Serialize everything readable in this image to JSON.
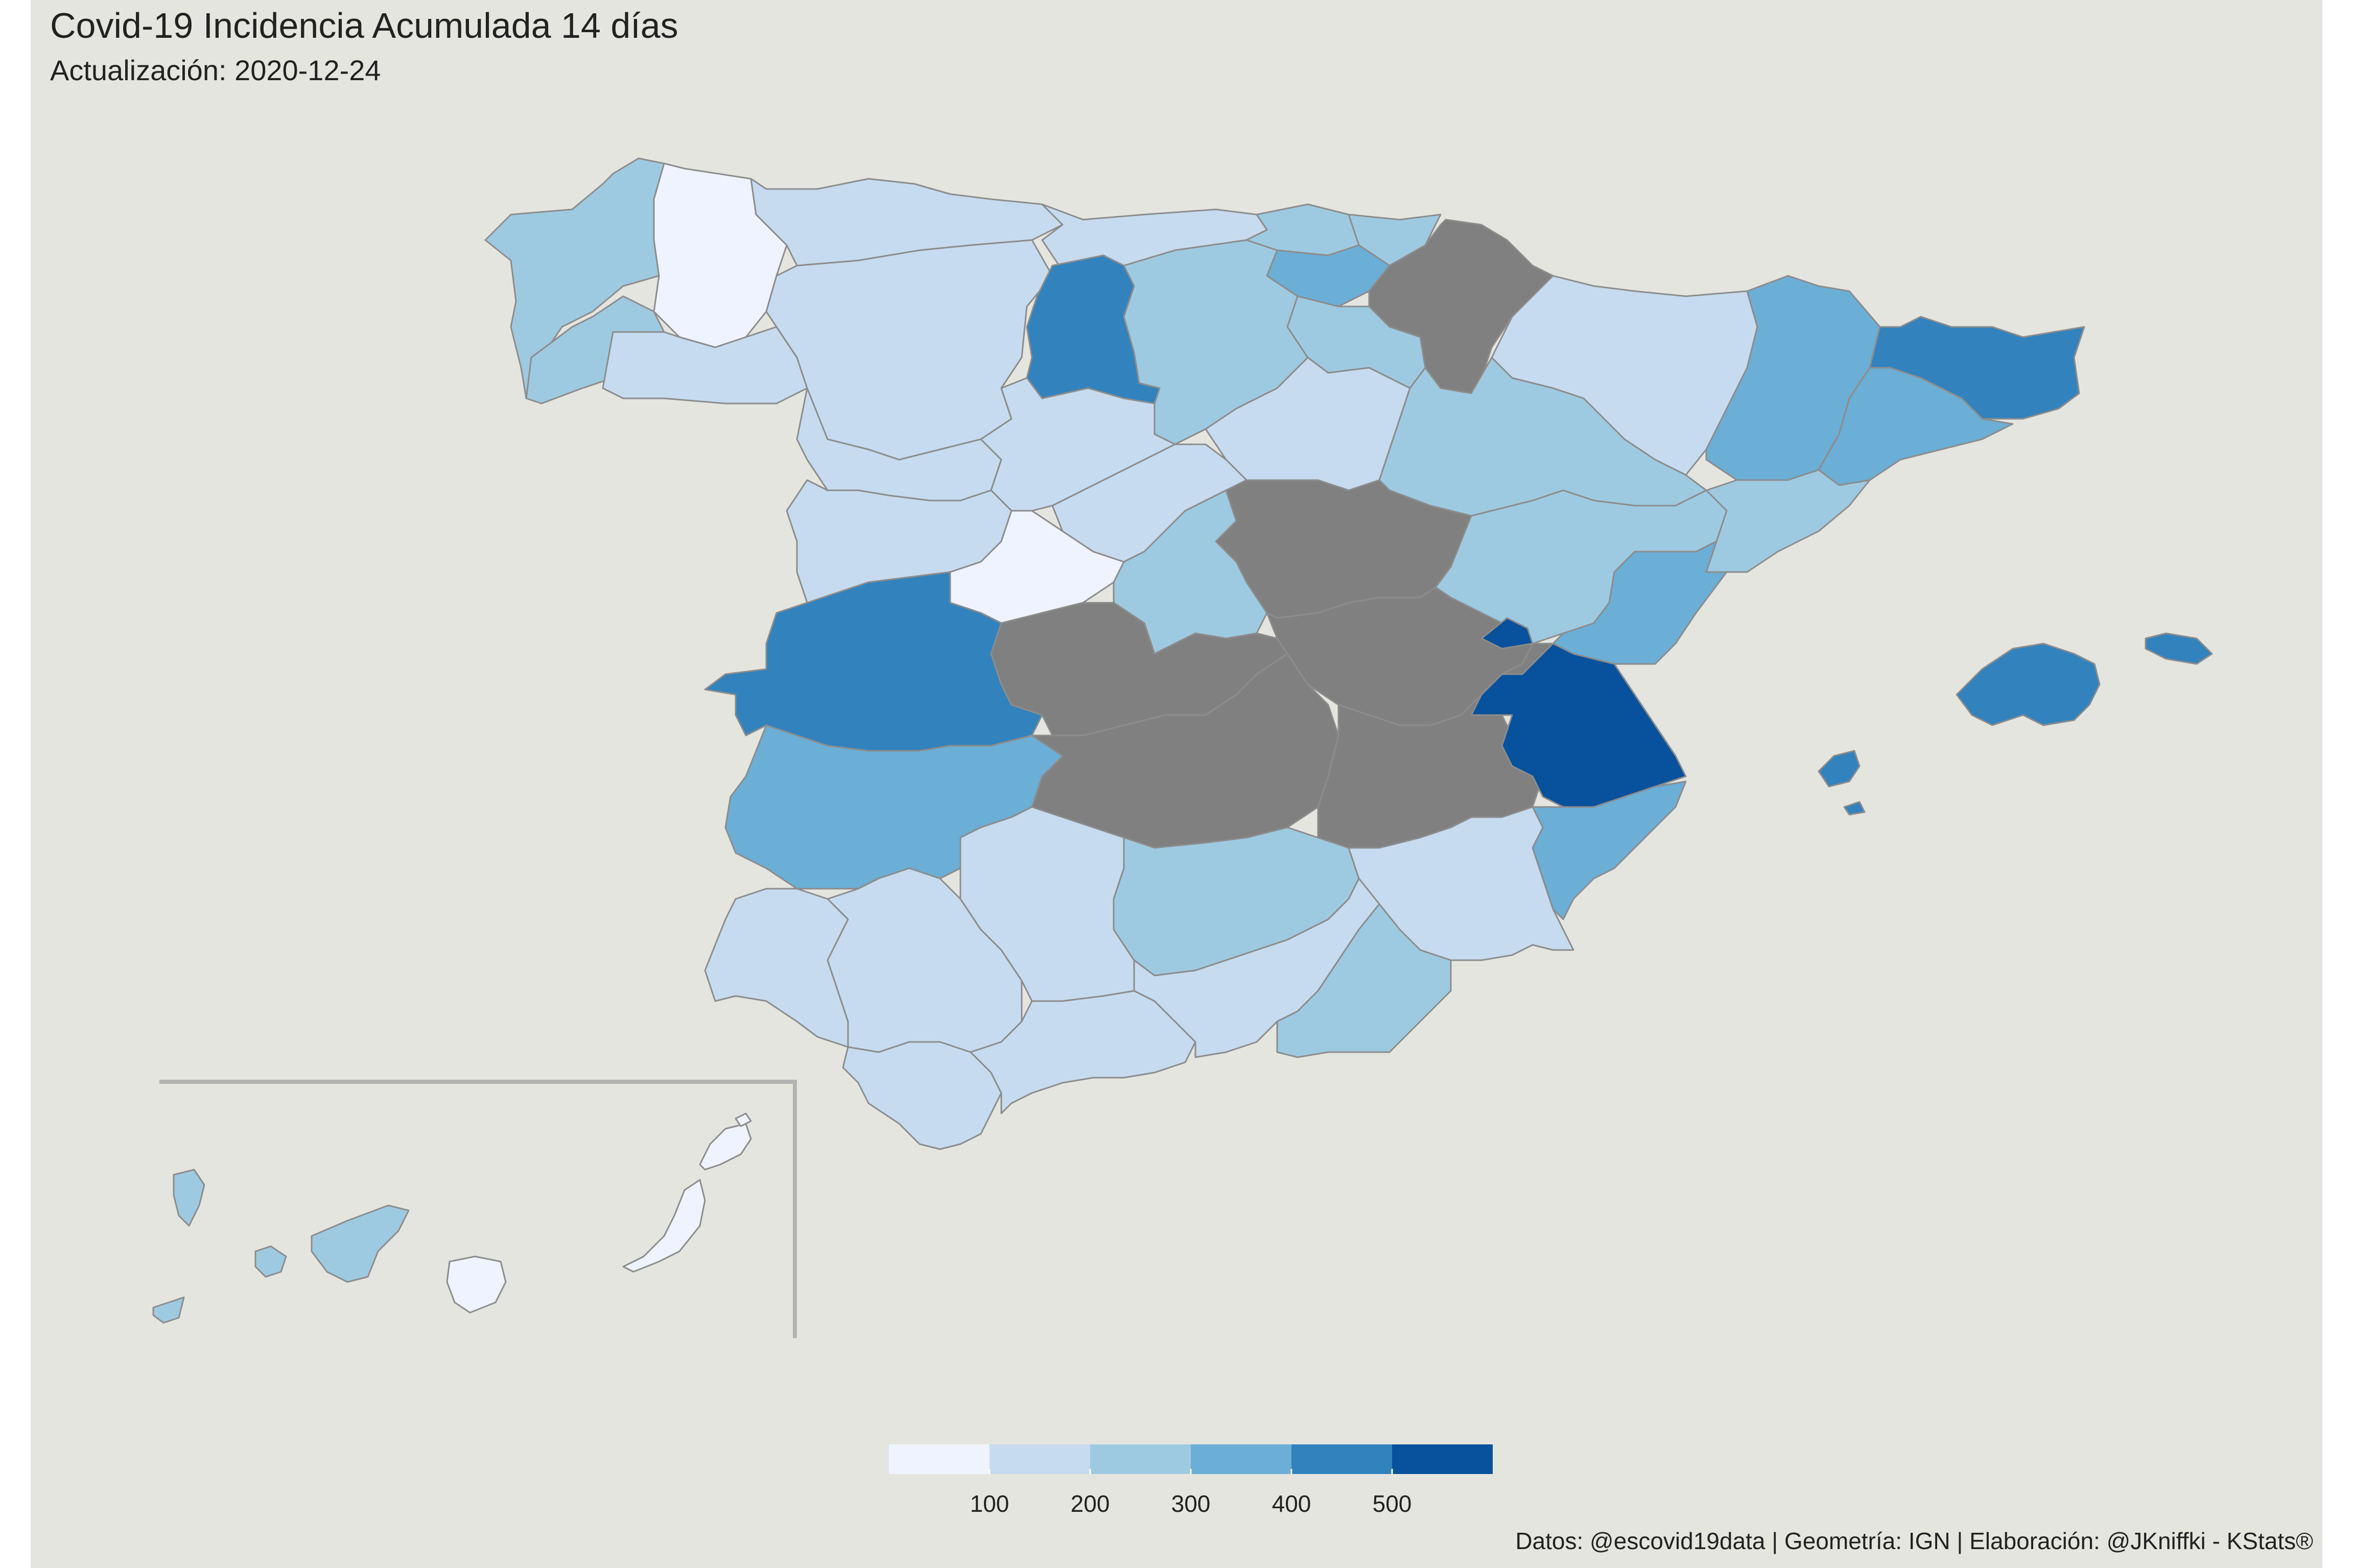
{
  "title": "Covid-19 Incidencia Acumulada 14 días",
  "subtitle": "Actualización: 2020-12-24",
  "caption": "Datos: @escovid19data | Geometría: IGN | Elaboración: @JKniffki - KStats®",
  "colors": {
    "background": "#e5e5e0",
    "border": "#8c8c8c",
    "no_data": "#808080",
    "classes": [
      "#eff3ff",
      "#c6dbef",
      "#9ecae1",
      "#6baed6",
      "#3182bd",
      "#08519c"
    ]
  },
  "legend": {
    "ticks": [
      "100",
      "200",
      "300",
      "400",
      "500"
    ]
  },
  "chart_data": {
    "type": "choropleth",
    "metric": "Incidencia acumulada 14 días",
    "class_breaks": [
      100,
      200,
      300,
      400,
      500
    ],
    "regions": [
      {
        "id": "a-coruna",
        "class": 2
      },
      {
        "id": "lugo",
        "class": 0
      },
      {
        "id": "asturias",
        "class": 1
      },
      {
        "id": "cantabria",
        "class": 1
      },
      {
        "id": "bizkaia",
        "class": 2
      },
      {
        "id": "gipuzkoa",
        "class": 2
      },
      {
        "id": "araba",
        "class": 3
      },
      {
        "id": "navarra",
        "class": "no-data"
      },
      {
        "id": "pontevedra",
        "class": 2
      },
      {
        "id": "ourense",
        "class": 1
      },
      {
        "id": "leon",
        "class": 1
      },
      {
        "id": "palencia",
        "class": 4
      },
      {
        "id": "burgos",
        "class": 2
      },
      {
        "id": "la-rioja",
        "class": 2
      },
      {
        "id": "huesca",
        "class": 1
      },
      {
        "id": "lleida",
        "class": 3
      },
      {
        "id": "girona",
        "class": 4
      },
      {
        "id": "barcelona",
        "class": 3
      },
      {
        "id": "tarragona",
        "class": 2
      },
      {
        "id": "zamora",
        "class": 1
      },
      {
        "id": "valladolid",
        "class": 1
      },
      {
        "id": "soria",
        "class": 1
      },
      {
        "id": "zaragoza",
        "class": 2
      },
      {
        "id": "salamanca",
        "class": 1
      },
      {
        "id": "avila",
        "class": 0
      },
      {
        "id": "segovia",
        "class": 1
      },
      {
        "id": "madrid",
        "class": 2
      },
      {
        "id": "guadalajara",
        "class": "no-data"
      },
      {
        "id": "teruel",
        "class": 2
      },
      {
        "id": "castellon",
        "class": 3
      },
      {
        "id": "caceres",
        "class": 4
      },
      {
        "id": "toledo",
        "class": "no-data"
      },
      {
        "id": "cuenca",
        "class": "no-data"
      },
      {
        "id": "ciudad-real",
        "class": "no-data"
      },
      {
        "id": "albacete",
        "class": "no-data"
      },
      {
        "id": "valencia",
        "class": 5
      },
      {
        "id": "badajoz",
        "class": 3
      },
      {
        "id": "alicante",
        "class": 3
      },
      {
        "id": "huelva",
        "class": 1
      },
      {
        "id": "sevilla",
        "class": 1
      },
      {
        "id": "cordoba",
        "class": 1
      },
      {
        "id": "jaen",
        "class": 2
      },
      {
        "id": "murcia",
        "class": 1
      },
      {
        "id": "cadiz",
        "class": 1
      },
      {
        "id": "malaga",
        "class": 1
      },
      {
        "id": "granada",
        "class": 1
      },
      {
        "id": "almeria",
        "class": 2
      },
      {
        "id": "mallorca",
        "class": 4
      },
      {
        "id": "menorca",
        "class": 4
      },
      {
        "id": "ibiza",
        "class": 4
      },
      {
        "id": "tenerife-province",
        "class": 2
      },
      {
        "id": "las-palmas-province",
        "class": 0
      }
    ]
  }
}
